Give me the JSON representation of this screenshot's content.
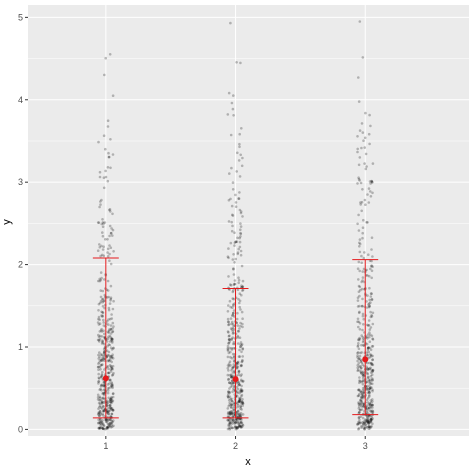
{
  "chart_data": {
    "type": "scatter",
    "xlabel": "x",
    "ylabel": "y",
    "x_categories": [
      "1",
      "2",
      "3"
    ],
    "ylim": [
      -0.08,
      5.15
    ],
    "y_ticks": [
      0,
      1,
      2,
      3,
      4,
      5
    ],
    "y_tick_labels": [
      "0",
      "1",
      "2",
      "3",
      "4",
      "5"
    ],
    "grid": true,
    "panel_background": "#ebebeb",
    "grid_color": "#ffffff",
    "point_color": "#000000",
    "summary_color": "#e41a1c",
    "summary": [
      {
        "x": "1",
        "mean": 0.62,
        "lower": 0.14,
        "upper": 2.08
      },
      {
        "x": "2",
        "mean": 0.61,
        "lower": 0.14,
        "upper": 1.71
      },
      {
        "x": "3",
        "mean": 0.85,
        "lower": 0.18,
        "upper": 2.06
      }
    ],
    "points_per_group": 500,
    "point_distribution": "exponential, jittered horizontally around each x category"
  }
}
